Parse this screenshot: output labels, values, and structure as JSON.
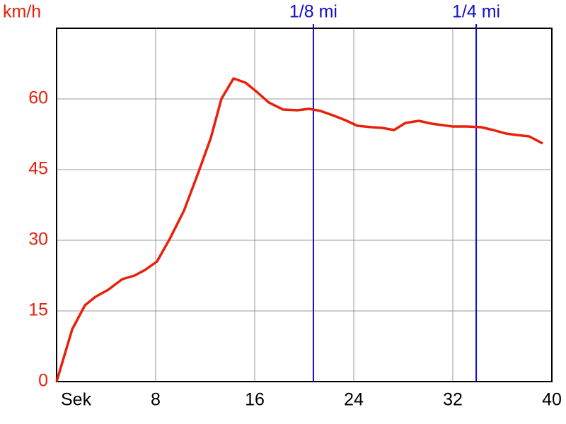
{
  "chart_data": {
    "type": "line",
    "y_label": "km/h",
    "x_label": "Sek",
    "xlim": [
      0,
      40
    ],
    "xticks": [
      8,
      16,
      24,
      32,
      40
    ],
    "ylim": [
      0,
      75
    ],
    "yticks": [
      0,
      15,
      30,
      45,
      60
    ],
    "grid": true,
    "series": [
      {
        "color": "#e8200c",
        "x": [
          0,
          1.26,
          2.29,
          3.14,
          4.17,
          5.31,
          6.29,
          7.14,
          8.11,
          9.14,
          10.29,
          11.43,
          12.46,
          13.31,
          14.29,
          15.26,
          16.17,
          17.14,
          18.29,
          19.43,
          20.4,
          21.31,
          22.29,
          23.31,
          24.29,
          25.43,
          26.29,
          27.26,
          28.17,
          29.26,
          30.29,
          31.14,
          32,
          33.14,
          34.29,
          35.26,
          36.29,
          37.14,
          38.17,
          39.26
        ],
        "values": [
          0,
          11.1,
          16.2,
          18,
          19.5,
          21.75,
          22.5,
          23.7,
          25.5,
          30.3,
          36.3,
          44.25,
          51.75,
          60,
          64.35,
          63.45,
          61.5,
          59.25,
          57.75,
          57.6,
          57.9,
          57.45,
          56.55,
          55.5,
          54.3,
          54,
          53.85,
          53.4,
          54.9,
          55.35,
          54.75,
          54.45,
          54.15,
          54.15,
          54,
          53.4,
          52.65,
          52.35,
          52.05,
          50.55
        ]
      }
    ],
    "markers": [
      {
        "label": "1/8 mi",
        "x": 20.74,
        "color": "#1010c8"
      },
      {
        "label": "1/4 mi",
        "x": 33.89,
        "color": "#1010c8"
      }
    ]
  }
}
